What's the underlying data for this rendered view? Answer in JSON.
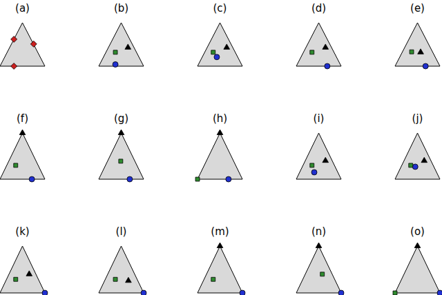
{
  "chart_data": [
    {
      "type": "scatter",
      "title": "(a)",
      "xlim": [
        0,
        1
      ],
      "ylim": [
        0,
        1
      ],
      "tick_labels": false,
      "grid": false,
      "series": [
        {
          "color": "#cc2020",
          "marker": "diamond",
          "values": [
            [
              0.31,
              0.62
            ],
            [
              0.75,
              0.51
            ],
            [
              0.31,
              0.0
            ]
          ]
        }
      ]
    },
    {
      "type": "scatter",
      "title": "(b)",
      "xlim": [
        0,
        1
      ],
      "ylim": [
        0,
        1
      ],
      "tick_labels": false,
      "grid": false,
      "series": [
        {
          "color": "#000000",
          "marker": "triangle",
          "values": [
            [
              0.65,
              0.43
            ]
          ]
        },
        {
          "color": "#2e8b2e",
          "marker": "square",
          "values": [
            [
              0.37,
              0.32
            ]
          ]
        },
        {
          "color": "#2030d0",
          "marker": "circle",
          "values": [
            [
              0.37,
              0.04
            ]
          ]
        }
      ]
    },
    {
      "type": "scatter",
      "title": "(c)",
      "xlim": [
        0,
        1
      ],
      "ylim": [
        0,
        1
      ],
      "tick_labels": false,
      "grid": false,
      "series": [
        {
          "color": "#000000",
          "marker": "triangle",
          "values": [
            [
              0.65,
              0.43
            ]
          ]
        },
        {
          "color": "#2e8b2e",
          "marker": "square",
          "values": [
            [
              0.35,
              0.32
            ]
          ]
        },
        {
          "color": "#2030d0",
          "marker": "circle",
          "values": [
            [
              0.43,
              0.21
            ]
          ]
        }
      ]
    },
    {
      "type": "scatter",
      "title": "(d)",
      "xlim": [
        0,
        1
      ],
      "ylim": [
        0,
        1
      ],
      "tick_labels": false,
      "grid": false,
      "series": [
        {
          "color": "#000000",
          "marker": "triangle",
          "values": [
            [
              0.65,
              0.43
            ]
          ]
        },
        {
          "color": "#2e8b2e",
          "marker": "square",
          "values": [
            [
              0.35,
              0.32
            ]
          ]
        },
        {
          "color": "#2030d0",
          "marker": "circle",
          "values": [
            [
              0.69,
              0.0
            ]
          ]
        }
      ]
    },
    {
      "type": "scatter",
      "title": "(e)",
      "xlim": [
        0,
        1
      ],
      "ylim": [
        0,
        1
      ],
      "tick_labels": false,
      "grid": false,
      "series": [
        {
          "color": "#000000",
          "marker": "triangle",
          "values": [
            [
              0.57,
              0.32
            ]
          ]
        },
        {
          "color": "#2e8b2e",
          "marker": "square",
          "values": [
            [
              0.37,
              0.33
            ]
          ]
        },
        {
          "color": "#2030d0",
          "marker": "circle",
          "values": [
            [
              0.68,
              0.0
            ]
          ]
        }
      ]
    },
    {
      "type": "scatter",
      "title": "(f)",
      "xlim": [
        0,
        1
      ],
      "ylim": [
        0,
        1
      ],
      "tick_labels": false,
      "grid": false,
      "series": [
        {
          "color": "#000000",
          "marker": "triangle",
          "values": [
            [
              0.5,
              1.0
            ]
          ]
        },
        {
          "color": "#2e8b2e",
          "marker": "square",
          "values": [
            [
              0.35,
              0.3
            ]
          ]
        },
        {
          "color": "#2030d0",
          "marker": "circle",
          "values": [
            [
              0.71,
              0.0
            ]
          ]
        }
      ]
    },
    {
      "type": "scatter",
      "title": "(g)",
      "xlim": [
        0,
        1
      ],
      "ylim": [
        0,
        1
      ],
      "tick_labels": false,
      "grid": false,
      "series": [
        {
          "color": "#000000",
          "marker": "triangle",
          "values": [
            [
              0.5,
              1.0
            ]
          ]
        },
        {
          "color": "#2e8b2e",
          "marker": "square",
          "values": [
            [
              0.49,
              0.39
            ]
          ]
        },
        {
          "color": "#2030d0",
          "marker": "circle",
          "values": [
            [
              0.69,
              0.0
            ]
          ]
        }
      ]
    },
    {
      "type": "scatter",
      "title": "(h)",
      "xlim": [
        0,
        1
      ],
      "ylim": [
        0,
        1
      ],
      "tick_labels": false,
      "grid": false,
      "series": [
        {
          "color": "#000000",
          "marker": "triangle",
          "values": [
            [
              0.5,
              1.0
            ]
          ]
        },
        {
          "color": "#2e8b2e",
          "marker": "square",
          "values": [
            [
              0.0,
              0.0
            ]
          ]
        },
        {
          "color": "#2030d0",
          "marker": "circle",
          "values": [
            [
              0.69,
              0.0
            ]
          ]
        }
      ]
    },
    {
      "type": "scatter",
      "title": "(i)",
      "xlim": [
        0,
        1
      ],
      "ylim": [
        0,
        1
      ],
      "tick_labels": false,
      "grid": false,
      "series": [
        {
          "color": "#000000",
          "marker": "triangle",
          "values": [
            [
              0.65,
              0.4
            ]
          ]
        },
        {
          "color": "#2e8b2e",
          "marker": "square",
          "values": [
            [
              0.35,
              0.3
            ]
          ]
        },
        {
          "color": "#2030d0",
          "marker": "circle",
          "values": [
            [
              0.4,
              0.15
            ]
          ]
        }
      ]
    },
    {
      "type": "scatter",
      "title": "(j)",
      "xlim": [
        0,
        1
      ],
      "ylim": [
        0,
        1
      ],
      "tick_labels": false,
      "grid": false,
      "series": [
        {
          "color": "#000000",
          "marker": "triangle",
          "values": [
            [
              0.65,
              0.4
            ]
          ]
        },
        {
          "color": "#2e8b2e",
          "marker": "square",
          "values": [
            [
              0.35,
              0.3
            ]
          ]
        },
        {
          "color": "#2030d0",
          "marker": "circle",
          "values": [
            [
              0.45,
              0.27
            ]
          ]
        }
      ]
    },
    {
      "type": "scatter",
      "title": "(k)",
      "xlim": [
        0,
        1
      ],
      "ylim": [
        0,
        1
      ],
      "tick_labels": false,
      "grid": false,
      "series": [
        {
          "color": "#000000",
          "marker": "triangle",
          "values": [
            [
              0.65,
              0.4
            ]
          ]
        },
        {
          "color": "#2e8b2e",
          "marker": "square",
          "values": [
            [
              0.35,
              0.29
            ]
          ]
        },
        {
          "color": "#2030d0",
          "marker": "circle",
          "values": [
            [
              1.0,
              0.0
            ]
          ]
        }
      ]
    },
    {
      "type": "scatter",
      "title": "(l)",
      "xlim": [
        0,
        1
      ],
      "ylim": [
        0,
        1
      ],
      "tick_labels": false,
      "grid": false,
      "series": [
        {
          "color": "#000000",
          "marker": "triangle",
          "values": [
            [
              0.66,
              0.26
            ]
          ]
        },
        {
          "color": "#2e8b2e",
          "marker": "square",
          "values": [
            [
              0.37,
              0.29
            ]
          ]
        },
        {
          "color": "#2030d0",
          "marker": "circle",
          "values": [
            [
              1.0,
              0.0
            ]
          ]
        }
      ]
    },
    {
      "type": "scatter",
      "title": "(m)",
      "xlim": [
        0,
        1
      ],
      "ylim": [
        0,
        1
      ],
      "tick_labels": false,
      "grid": false,
      "series": [
        {
          "color": "#000000",
          "marker": "triangle",
          "values": [
            [
              0.5,
              1.0
            ]
          ]
        },
        {
          "color": "#2e8b2e",
          "marker": "square",
          "values": [
            [
              0.35,
              0.29
            ]
          ]
        },
        {
          "color": "#2030d0",
          "marker": "circle",
          "values": [
            [
              1.0,
              0.0
            ]
          ]
        }
      ]
    },
    {
      "type": "scatter",
      "title": "(n)",
      "xlim": [
        0,
        1
      ],
      "ylim": [
        0,
        1
      ],
      "tick_labels": false,
      "grid": false,
      "series": [
        {
          "color": "#000000",
          "marker": "triangle",
          "values": [
            [
              0.5,
              1.0
            ]
          ]
        },
        {
          "color": "#2e8b2e",
          "marker": "square",
          "values": [
            [
              0.58,
              0.4
            ]
          ]
        },
        {
          "color": "#2030d0",
          "marker": "circle",
          "values": [
            [
              1.0,
              0.0
            ]
          ]
        }
      ]
    },
    {
      "type": "scatter",
      "title": "(o)",
      "xlim": [
        0,
        1
      ],
      "ylim": [
        0,
        1
      ],
      "tick_labels": false,
      "grid": false,
      "series": [
        {
          "color": "#000000",
          "marker": "triangle",
          "values": [
            [
              0.5,
              1.0
            ]
          ]
        },
        {
          "color": "#2e8b2e",
          "marker": "square",
          "values": [
            [
              0.0,
              0.0
            ]
          ]
        },
        {
          "color": "#2030d0",
          "marker": "circle",
          "values": [
            [
              1.0,
              0.0
            ]
          ]
        }
      ]
    }
  ]
}
